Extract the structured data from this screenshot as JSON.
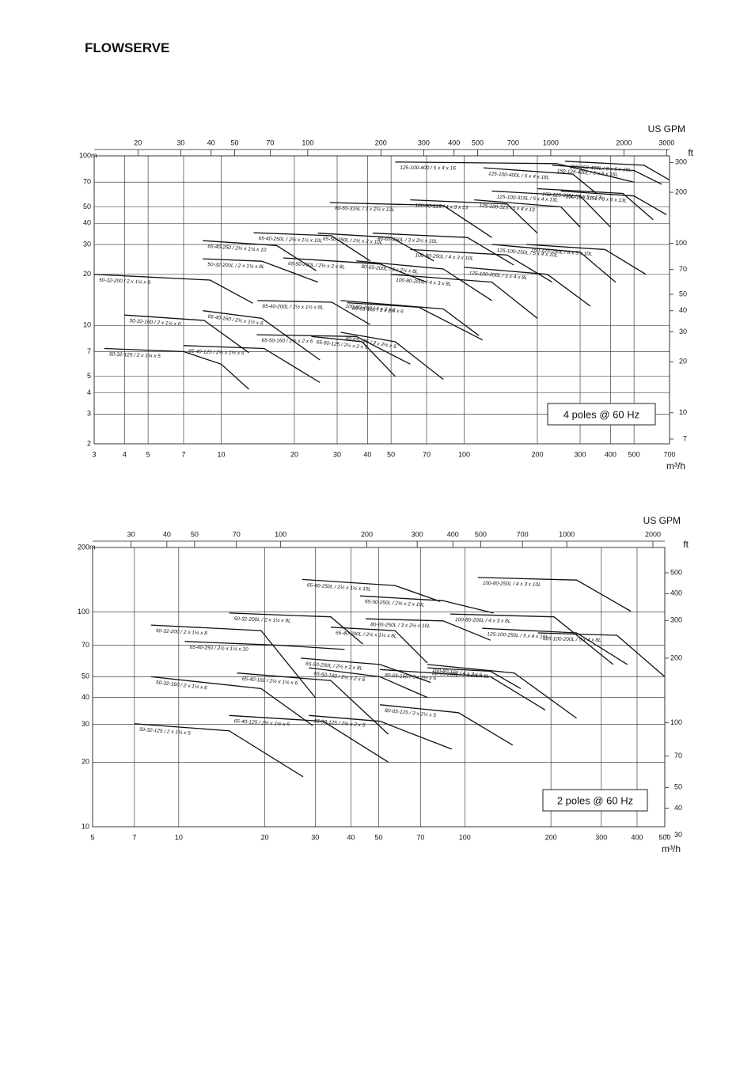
{
  "logo": "FLOWSERVE",
  "chart_data": [
    {
      "type": "line",
      "xscale": "log",
      "yscale": "log",
      "grid": true,
      "color": "#111111",
      "x_unit": "m³/h",
      "y_unit": "m",
      "x2_unit": "US GPM",
      "y2_unit": "ft",
      "annotation": "4 poles @ 60 Hz",
      "xlim": [
        3,
        700
      ],
      "xticks": [
        3,
        4,
        5,
        7,
        10,
        20,
        30,
        40,
        50,
        70,
        100,
        200,
        300,
        400,
        500,
        700
      ],
      "ylim": [
        2,
        100
      ],
      "yticks": [
        2,
        3,
        4,
        5,
        7,
        10,
        20,
        30,
        40,
        50,
        70,
        100
      ],
      "x2lim": [
        13.21,
        3082
      ],
      "x2ticks": [
        20,
        30,
        40,
        50,
        70,
        100,
        200,
        300,
        400,
        500,
        700,
        1000,
        2000,
        3000
      ],
      "y2lim": [
        6.56,
        328.1
      ],
      "y2ticks": [
        7,
        10,
        20,
        30,
        40,
        50,
        70,
        100,
        200,
        300
      ],
      "series": [
        {
          "name": "50-32-125 / 2 x 1¼ x 5",
          "x": [
            3.3,
            7,
            10,
            13
          ],
          "values": [
            7.3,
            7,
            5.9,
            4.2
          ]
        },
        {
          "name": "50-32-160 / 2 x 1¼ x 6",
          "x": [
            4,
            8.5,
            13
          ],
          "values": [
            11.5,
            10.7,
            6.9
          ]
        },
        {
          "name": "50-32-200 / 2 x 1¼ x 8",
          "x": [
            3,
            9,
            13.5
          ],
          "values": [
            20,
            18.5,
            13.5
          ]
        },
        {
          "name": "50-32-200L / 2 x 1¼ x 8L",
          "x": [
            8.4,
            14.7,
            25
          ],
          "values": [
            24.7,
            23.9,
            18
          ]
        },
        {
          "name": "65-40-125 / 2½ x 1½ x 5",
          "x": [
            7,
            15,
            25.5
          ],
          "values": [
            7.6,
            7.3,
            4.6
          ]
        },
        {
          "name": "65-40-160 / 2½ x 1½ x 6",
          "x": [
            8.4,
            14.7,
            25.5
          ],
          "values": [
            12.2,
            11,
            6.25
          ]
        },
        {
          "name": "65-40-200L / 2½ x 1½ x 8L",
          "x": [
            14.1,
            28.5,
            41
          ],
          "values": [
            14,
            13.7,
            10.1
          ]
        },
        {
          "name": "65-40-250 / 2½ x 1¼ x 10",
          "x": [
            8.4,
            16.9,
            24.6
          ],
          "values": [
            31.6,
            29.6,
            21
          ]
        },
        {
          "name": "65-40-250L / 2½ x 1½ x 10L",
          "x": [
            13.6,
            28.4,
            41
          ],
          "values": [
            35.2,
            33.8,
            24
          ]
        },
        {
          "name": "65-50-125 / 2½ x 2 x 5",
          "x": [
            23.5,
            38,
            52
          ],
          "values": [
            8.6,
            8,
            5
          ]
        },
        {
          "name": "65-50-160 / 2½ x 2 x 6",
          "x": [
            14,
            36,
            60
          ],
          "values": [
            8.8,
            8.6,
            5.9
          ]
        },
        {
          "name": "65-50-200L / 2½ x 2 x 8L",
          "x": [
            18,
            45,
            70
          ],
          "values": [
            25,
            23,
            18
          ]
        },
        {
          "name": "65-50-250L / 2½ x 2 x 10L",
          "x": [
            25,
            50,
            75
          ],
          "values": [
            35,
            33,
            24
          ]
        },
        {
          "name": "80-65-125 / 3 x 2½ x 5",
          "x": [
            31,
            52,
            82
          ],
          "values": [
            9.1,
            8,
            4.8
          ]
        },
        {
          "name": "80-65-160 / 3 x 2½ x 6",
          "x": [
            33,
            65,
            119
          ],
          "values": [
            13.6,
            12.8,
            8.2
          ]
        },
        {
          "name": "80-65-200L / 3 x 2½ x 8L",
          "x": [
            36,
            82,
            130
          ],
          "values": [
            24,
            21.5,
            14
          ]
        },
        {
          "name": "80-65-250L / 3 x 2½ x 10L",
          "x": [
            42,
            103,
            160
          ],
          "values": [
            35,
            33,
            22.7
          ]
        },
        {
          "name": "80-65-315L / 3 x 2½ x 13L",
          "x": [
            28,
            82,
            130
          ],
          "values": [
            53,
            51,
            33
          ]
        },
        {
          "name": "100-80-160 / 4 x 3 x 6",
          "x": [
            31,
            82,
            115
          ],
          "values": [
            14,
            12.5,
            8.7
          ]
        },
        {
          "name": "100-80-200L / 4 x 3 x 8L",
          "x": [
            50,
            130,
            200
          ],
          "values": [
            20,
            18,
            11
          ]
        },
        {
          "name": "100-80-250L / 4 x 3 x 10L",
          "x": [
            60,
            150,
            230
          ],
          "values": [
            28,
            26,
            18
          ]
        },
        {
          "name": "100-80-315 / 4 x 3 x 13",
          "x": [
            60,
            150,
            200
          ],
          "values": [
            55,
            52,
            35
          ]
        },
        {
          "name": "125-100-200L / 5 x 4 x 8L",
          "x": [
            100,
            220,
            330
          ],
          "values": [
            22,
            20,
            13
          ]
        },
        {
          "name": "125-100-250L / 5 x 4 x 10L",
          "x": [
            130,
            300,
            420
          ],
          "values": [
            30,
            27,
            18
          ]
        },
        {
          "name": "125-100-315 / 5 x 4 x 13",
          "x": [
            110,
            250,
            300
          ],
          "values": [
            55,
            50,
            38
          ]
        },
        {
          "name": "125-100-315L / 5 x 4 x 13L",
          "x": [
            130,
            300,
            400
          ],
          "values": [
            62,
            58,
            38
          ]
        },
        {
          "name": "125-100-400 / 5 x 4 x 16",
          "x": [
            52,
            240,
            500
          ],
          "values": [
            92,
            90,
            70
          ]
        },
        {
          "name": "125-100-400L / 5 x 4 x 16L",
          "x": [
            120,
            280,
            350
          ],
          "values": [
            85,
            78,
            60
          ]
        },
        {
          "name": "150-125-250L / 6 x 5 x 10L",
          "x": [
            180,
            380,
            560
          ],
          "values": [
            30,
            28,
            20
          ]
        },
        {
          "name": "150-125-315L / 6 x 5 x 13L",
          "x": [
            200,
            450,
            600
          ],
          "values": [
            64,
            60,
            42
          ]
        },
        {
          "name": "150-125-400L / 6 x 5 x 16L",
          "x": [
            230,
            500,
            650
          ],
          "values": [
            88,
            82,
            68
          ]
        },
        {
          "name": "200-150-315L / 8 x 6 x 13L",
          "x": [
            250,
            500,
            680
          ],
          "values": [
            62,
            58,
            45
          ]
        },
        {
          "name": "200-150-400L / 8 x 6 x 16L",
          "x": [
            260,
            550,
            700
          ],
          "values": [
            93,
            88,
            72
          ]
        }
      ]
    },
    {
      "type": "line",
      "xscale": "log",
      "yscale": "log",
      "grid": true,
      "color": "#111111",
      "x_unit": "m³/h",
      "y_unit": "m",
      "x2_unit": "US GPM",
      "y2_unit": "ft",
      "annotation": "2 poles @ 60 Hz",
      "xlim": [
        5,
        500
      ],
      "xticks": [
        5,
        7,
        10,
        20,
        30,
        40,
        50,
        70,
        100,
        200,
        300,
        400,
        500
      ],
      "ylim": [
        10,
        200
      ],
      "yticks": [
        10,
        20,
        30,
        40,
        50,
        70,
        100,
        200
      ],
      "x2lim": [
        22.0,
        2201
      ],
      "x2ticks": [
        30,
        40,
        50,
        70,
        100,
        200,
        300,
        400,
        500,
        700,
        1000,
        2000
      ],
      "y2lim": [
        32.8,
        656.2
      ],
      "y2ticks": [
        30,
        40,
        50,
        70,
        100,
        200,
        300,
        400,
        500
      ],
      "series": [
        {
          "name": "50-32-125 / 2 x 1¼ x 5",
          "x": [
            7,
            15,
            27.2
          ],
          "values": [
            30.2,
            28,
            17.1
          ]
        },
        {
          "name": "50-32-160 / 2 x 1¼ x 6",
          "x": [
            8,
            19.4,
            29.4
          ],
          "values": [
            50,
            44,
            29.6
          ]
        },
        {
          "name": "50-32-200 / 2 x 1¼ x 8",
          "x": [
            8,
            19.4,
            30
          ],
          "values": [
            87,
            82,
            40
          ]
        },
        {
          "name": "50-32-200L / 2 x 1¼ x 8L",
          "x": [
            15,
            34,
            44
          ],
          "values": [
            99,
            95,
            71
          ]
        },
        {
          "name": "65-40-125 / 2½ x 1½ x 5",
          "x": [
            15,
            32,
            54
          ],
          "values": [
            33,
            31,
            20
          ]
        },
        {
          "name": "65-40-160 / 2½ x 1½ x 6",
          "x": [
            16,
            34,
            54
          ],
          "values": [
            52,
            48,
            27
          ]
        },
        {
          "name": "65-40-200L / 2½ x 1½ x 8L",
          "x": [
            34,
            57,
            74
          ],
          "values": [
            85,
            82,
            58
          ]
        },
        {
          "name": "65-40-250 / 2½ x 1¼ x 10",
          "x": [
            10.5,
            22.7,
            38
          ],
          "values": [
            73,
            70,
            67
          ]
        },
        {
          "name": "65-40-250L / 2½ x 1½ x 10L",
          "x": [
            27,
            57,
            82
          ],
          "values": [
            142,
            133,
            112
          ]
        },
        {
          "name": "65-50-125 / 2½ x 2 x 5",
          "x": [
            28.5,
            50.5,
            90
          ],
          "values": [
            33,
            31,
            23
          ]
        },
        {
          "name": "65-50-160 / 2½ x 2 x 6",
          "x": [
            28.5,
            50.5,
            74
          ],
          "values": [
            55,
            50,
            40
          ]
        },
        {
          "name": "65-50-200L / 2½ x 2 x 8L",
          "x": [
            26.7,
            50.5,
            76
          ],
          "values": [
            61,
            57,
            47
          ]
        },
        {
          "name": "65-50-250L / 2½ x 2 x 10L",
          "x": [
            43,
            84,
            126
          ],
          "values": [
            119,
            113,
            99
          ]
        },
        {
          "name": "80-65-125 / 3 x 2½ x 5",
          "x": [
            50.5,
            95,
            147
          ],
          "values": [
            37,
            34,
            24
          ]
        },
        {
          "name": "80-65-160 / 3 x 2½ x 6",
          "x": [
            50.5,
            123,
            191
          ],
          "values": [
            54,
            50,
            35
          ]
        },
        {
          "name": "80-65-200L / 3 x 2½ x 8L",
          "x": [
            74,
            123,
            157
          ],
          "values": [
            55,
            53,
            44
          ]
        },
        {
          "name": "80-65-250L / 3 x 2½ x 10L",
          "x": [
            45,
            84,
            123
          ],
          "values": [
            93,
            91,
            74
          ]
        },
        {
          "name": "100-80-160 / 4 x 3 x 6",
          "x": [
            74,
            149,
            246
          ],
          "values": [
            57,
            52,
            32
          ]
        },
        {
          "name": "100-80-200L / 4 x 3 x 8L",
          "x": [
            89,
            205,
            330
          ],
          "values": [
            98,
            95,
            57
          ]
        },
        {
          "name": "100-80-250L / 4 x 3 x 10L",
          "x": [
            111,
            246,
            380
          ],
          "values": [
            145,
            141,
            101
          ]
        },
        {
          "name": "125-100-250L / 5 x 4 x 10L",
          "x": [
            115,
            246,
            370
          ],
          "values": [
            84,
            80,
            57
          ]
        },
        {
          "name": "125-100-200L / 5 x 4 x 8L",
          "x": [
            180,
            340,
            500
          ],
          "values": [
            80,
            78,
            50
          ]
        }
      ]
    }
  ]
}
